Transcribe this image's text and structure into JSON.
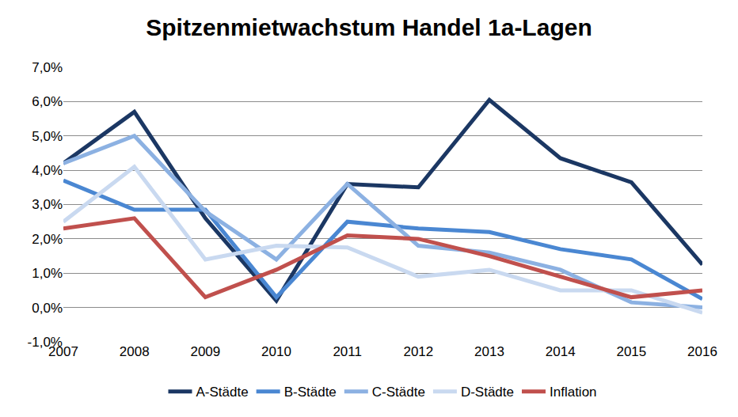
{
  "chart_data": {
    "type": "line",
    "title": "Spitzenmietwachstum Handel 1a-Lagen",
    "categories": [
      "2007",
      "2008",
      "2009",
      "2010",
      "2011",
      "2012",
      "2013",
      "2014",
      "2015",
      "2016"
    ],
    "series": [
      {
        "name": "A-Städte",
        "color": "#1b3763",
        "values": [
          4.2,
          5.7,
          2.6,
          0.2,
          3.6,
          3.5,
          6.05,
          4.35,
          3.65,
          1.25
        ]
      },
      {
        "name": "B-Städte",
        "color": "#4a87d2",
        "values": [
          3.7,
          2.85,
          2.85,
          0.3,
          2.5,
          2.3,
          2.2,
          1.7,
          1.4,
          0.25
        ]
      },
      {
        "name": "C-Städte",
        "color": "#8cb1e2",
        "values": [
          4.2,
          5.0,
          2.8,
          1.4,
          3.6,
          1.8,
          1.6,
          1.1,
          0.15,
          0.0
        ]
      },
      {
        "name": "D-Städte",
        "color": "#c9d9f0",
        "values": [
          2.5,
          4.1,
          1.4,
          1.8,
          1.75,
          0.9,
          1.1,
          0.5,
          0.5,
          -0.15
        ]
      },
      {
        "name": "Inflation",
        "color": "#c0504d",
        "values": [
          2.3,
          2.6,
          0.3,
          1.1,
          2.1,
          2.0,
          1.5,
          0.9,
          0.3,
          0.5
        ]
      }
    ],
    "ylim": [
      -1,
      7
    ],
    "yticks": [
      {
        "value": -1,
        "label": "-1,0%"
      },
      {
        "value": 0,
        "label": "0,0%"
      },
      {
        "value": 1,
        "label": "1,0%"
      },
      {
        "value": 2,
        "label": "2,0%"
      },
      {
        "value": 3,
        "label": "3,0%"
      },
      {
        "value": 4,
        "label": "4,0%"
      },
      {
        "value": 5,
        "label": "5,0%"
      },
      {
        "value": 6,
        "label": "6,0%"
      },
      {
        "value": 7,
        "label": "7,0%"
      }
    ],
    "grid": true,
    "legend": "bottom"
  }
}
